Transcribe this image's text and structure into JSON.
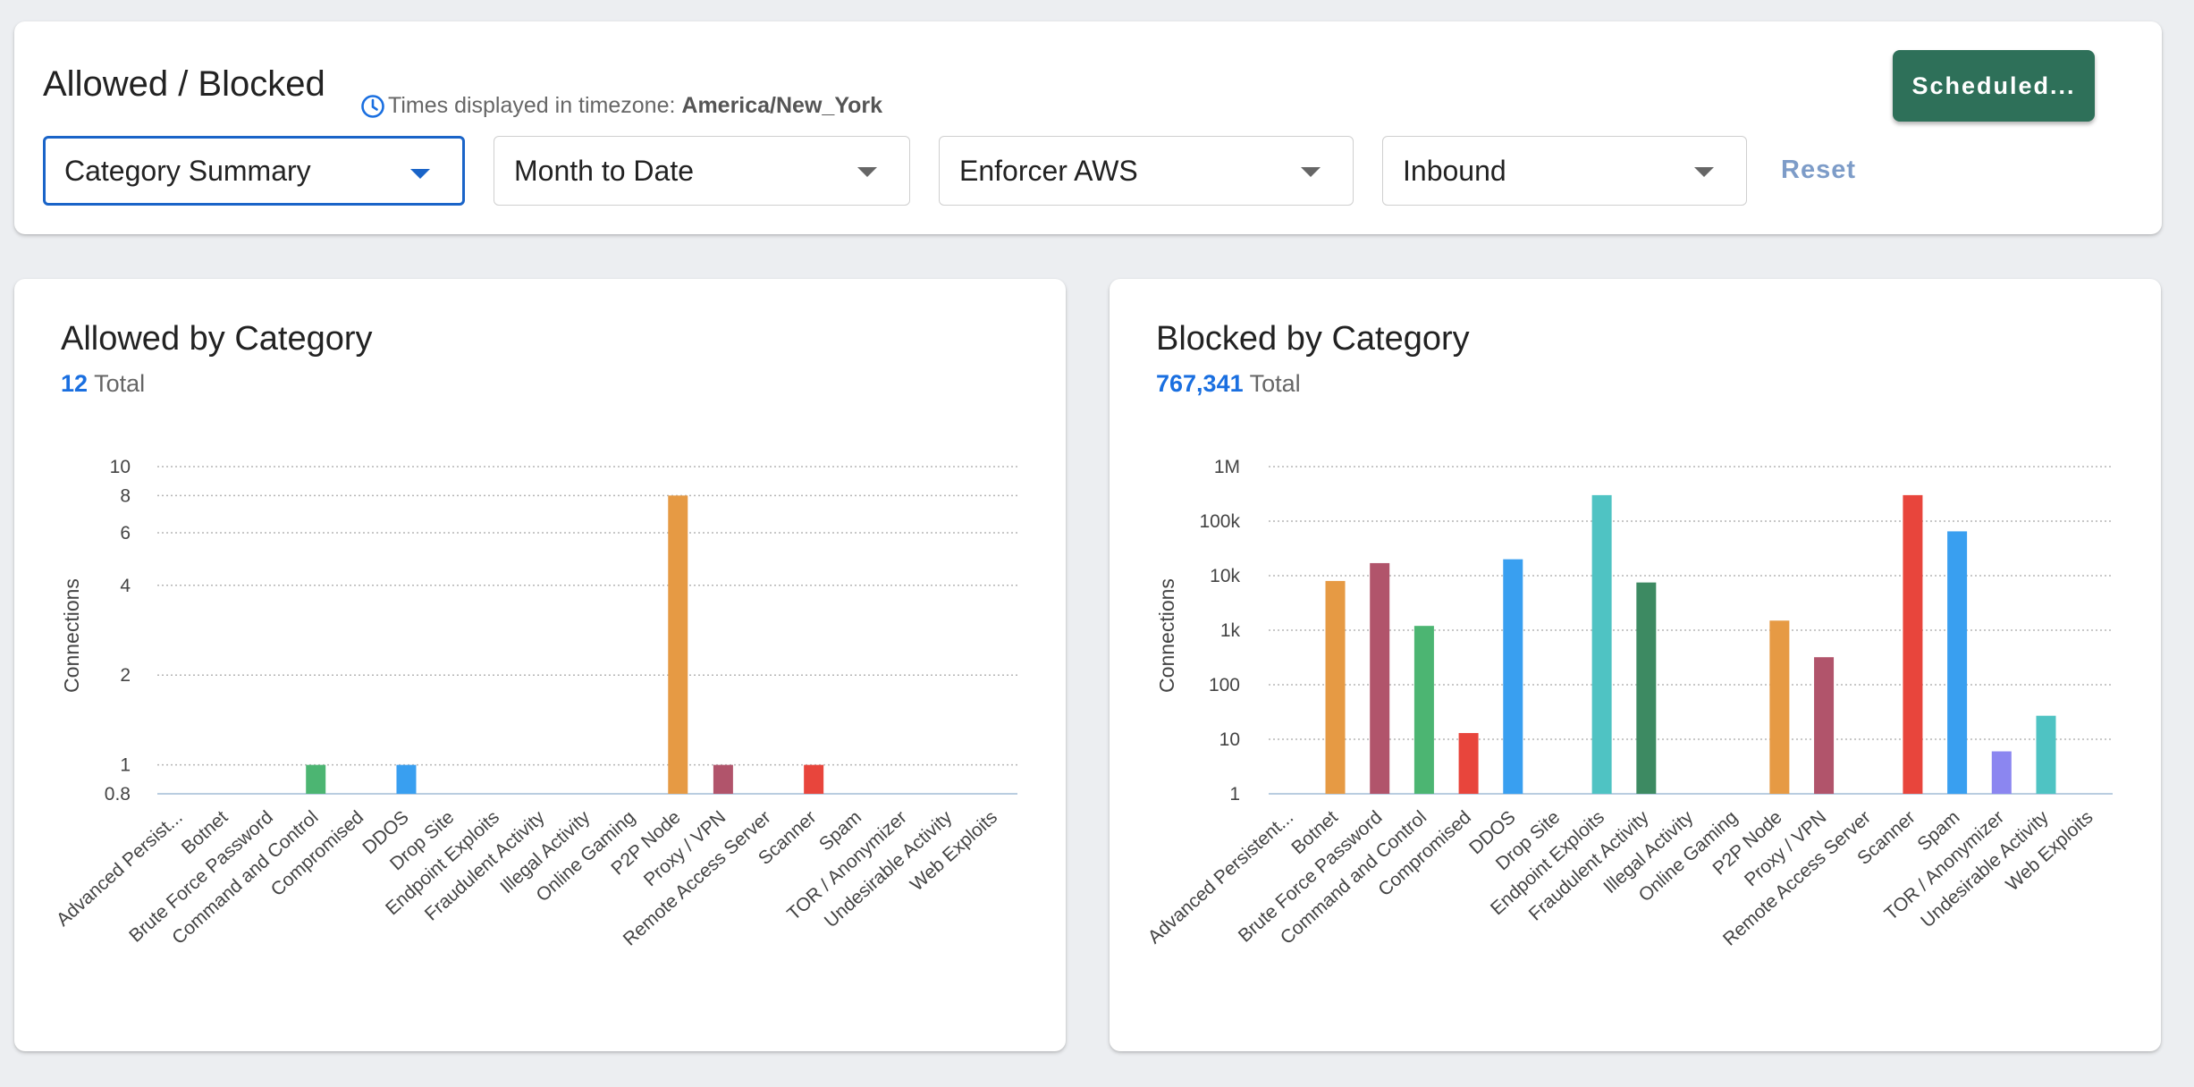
{
  "header": {
    "title": "Allowed / Blocked",
    "timezone_label": "Times displayed in timezone:",
    "timezone_value": "America/New_York",
    "scheduled_label": "Scheduled...",
    "reset_label": "Reset",
    "filters": {
      "report": "Category Summary",
      "range": "Month to Date",
      "enforcer": "Enforcer AWS",
      "direction": "Inbound"
    }
  },
  "colors": {
    "accent_blue": "#1a6fe0",
    "scheduled_button": "#2e7059",
    "reset_link": "#7d9cc8"
  },
  "allowed": {
    "title": "Allowed by Category",
    "total_value": "12",
    "total_label": "Total"
  },
  "blocked": {
    "title": "Blocked by Category",
    "total_value": "767,341",
    "total_label": "Total"
  },
  "chart_data": [
    {
      "id": "allowed",
      "type": "bar",
      "scale": "log",
      "ylabel": "Connections",
      "ylim": [
        0.8,
        10
      ],
      "yticks": [
        {
          "v": 0.8,
          "label": "0.8"
        },
        {
          "v": 1,
          "label": "1"
        },
        {
          "v": 2,
          "label": "2"
        },
        {
          "v": 4,
          "label": "4"
        },
        {
          "v": 6,
          "label": "6"
        },
        {
          "v": 8,
          "label": "8"
        },
        {
          "v": 10,
          "label": "10"
        }
      ],
      "categories": [
        "Advanced Persist...",
        "Botnet",
        "Brute Force Password",
        "Command and Control",
        "Compromised",
        "DDOS",
        "Drop Site",
        "Endpoint Exploits",
        "Fraudulent Activity",
        "Illegal Activity",
        "Online Gaming",
        "P2P Node",
        "Proxy / VPN",
        "Remote Access Server",
        "Scanner",
        "Spam",
        "TOR / Anonymizer",
        "Undesirable Activity",
        "Web Exploits"
      ],
      "values": [
        0,
        0,
        0,
        1,
        0,
        1,
        0,
        0,
        0,
        0,
        0,
        8,
        1,
        0,
        1,
        0,
        0,
        0,
        0
      ],
      "colors": [
        "#e69a44",
        "#b1546b",
        "#4cb572",
        "#4cb572",
        "#e8453c",
        "#399ff0",
        "#4fc3c3",
        "#4fc3c3",
        "#3d8a62",
        "#3d8a62",
        "#e69a44",
        "#e69a44",
        "#b1546b",
        "#b1546b",
        "#e8453c",
        "#399ff0",
        "#8b86f0",
        "#4fc3c3",
        "#4fc3c3"
      ]
    },
    {
      "id": "blocked",
      "type": "bar",
      "scale": "log",
      "ylabel": "Connections",
      "ylim": [
        1,
        1000000
      ],
      "yticks": [
        {
          "v": 1,
          "label": "1"
        },
        {
          "v": 10,
          "label": "10"
        },
        {
          "v": 100,
          "label": "100"
        },
        {
          "v": 1000,
          "label": "1k"
        },
        {
          "v": 10000,
          "label": "10k"
        },
        {
          "v": 100000,
          "label": "100k"
        },
        {
          "v": 1000000,
          "label": "1M"
        }
      ],
      "categories": [
        "Advanced Persistent...",
        "Botnet",
        "Brute Force Password",
        "Command and Control",
        "Compromised",
        "DDOS",
        "Drop Site",
        "Endpoint Exploits",
        "Fraudulent Activity",
        "Illegal Activity",
        "Online Gaming",
        "P2P Node",
        "Proxy / VPN",
        "Remote Access Server",
        "Scanner",
        "Spam",
        "TOR / Anonymizer",
        "Undesirable Activity",
        "Web Exploits"
      ],
      "values": [
        0,
        8000,
        17000,
        1200,
        13,
        20000,
        0,
        300000,
        7500,
        0,
        0,
        1500,
        320,
        0,
        300000,
        65000,
        6,
        27,
        0
      ],
      "colors": [
        "#e69a44",
        "#e69a44",
        "#b1546b",
        "#4cb572",
        "#e8453c",
        "#399ff0",
        "#4fc3c3",
        "#4fc3c3",
        "#3d8a62",
        "#3d8a62",
        "#e69a44",
        "#e69a44",
        "#b1546b",
        "#b1546b",
        "#e8453c",
        "#399ff0",
        "#8b86f0",
        "#4fc3c3",
        "#4fc3c3"
      ]
    }
  ]
}
